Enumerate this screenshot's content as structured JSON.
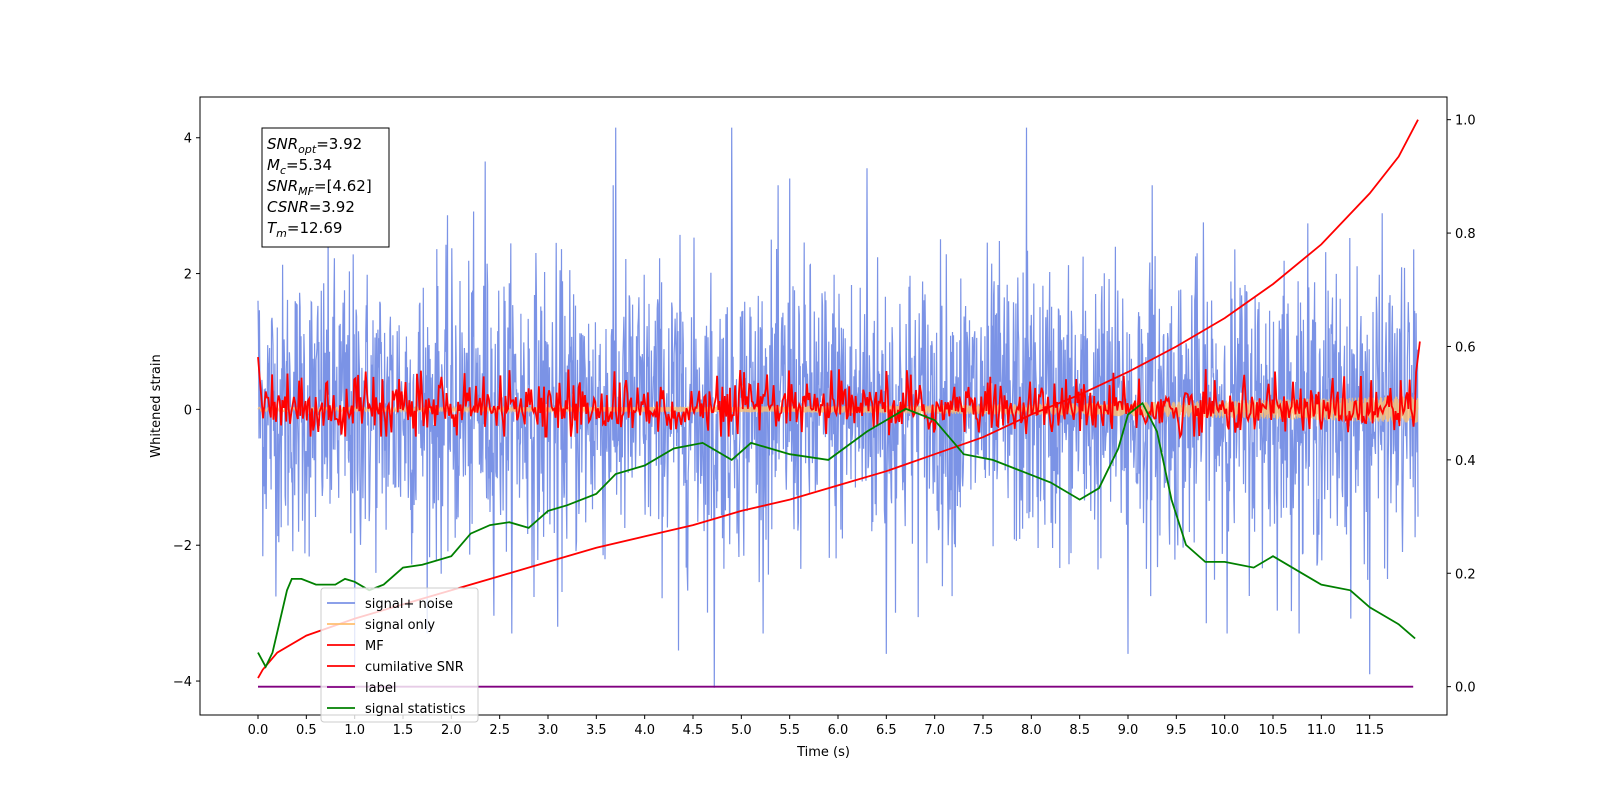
{
  "chart_data": {
    "type": "line",
    "xlabel": "Time (s)",
    "ylabel": "Whitened strain",
    "xlim": [
      -0.6,
      12.3
    ],
    "ylim": [
      -4.5,
      4.6
    ],
    "y2lim": [
      -0.05,
      1.04
    ],
    "grid": false,
    "legend_position": "lower-left",
    "x_ticks": [
      "0.0",
      "0.5",
      "1.0",
      "1.5",
      "2.0",
      "2.5",
      "3.0",
      "3.5",
      "4.0",
      "4.5",
      "5.0",
      "5.5",
      "6.0",
      "6.5",
      "7.0",
      "7.5",
      "8.0",
      "8.5",
      "9.0",
      "9.5",
      "10.0",
      "10.5",
      "11.0",
      "11.5"
    ],
    "y_ticks": [
      "4",
      "2",
      "0",
      "−2",
      "−4"
    ],
    "y2_ticks": [
      "1.0",
      "0.8",
      "0.6",
      "0.4",
      "0.2",
      "0.0"
    ],
    "annotation": {
      "lines": [
        {
          "label": "SNR",
          "sub": "opt",
          "value": "=3.92"
        },
        {
          "label": "M",
          "sub": "c",
          "value": "=5.34"
        },
        {
          "label": "SNR",
          "sub": "MF",
          "value": "=[4.62]"
        },
        {
          "label": "CSNR",
          "sub": "",
          "value": "=3.92"
        },
        {
          "label": "T",
          "sub": "m",
          "value": "=12.69"
        }
      ]
    },
    "legend": [
      {
        "name": "signal+ noise",
        "color": "#7b93e6"
      },
      {
        "name": "signal only",
        "color": "#ffbf70"
      },
      {
        "name": "MF",
        "color": "#ff0000"
      },
      {
        "name": "cumilative SNR",
        "color": "#ff0000"
      },
      {
        "name": "label",
        "color": "#800080"
      },
      {
        "name": "signal statistics",
        "color": "#008000"
      }
    ],
    "series": [
      {
        "name": "signal+ noise",
        "axis": "left",
        "color": "#7b93e6",
        "description": "dense noisy whitened strain, approx. range -4.1 to 4.2",
        "x_range": [
          0.0,
          12.0
        ],
        "noise_sigma": 1.05,
        "peaks": [
          [
            0.0,
            1.6
          ],
          [
            2.35,
            3.65
          ],
          [
            3.7,
            4.15
          ],
          [
            4.9,
            4.15
          ],
          [
            7.95,
            4.15
          ],
          [
            5.5,
            3.4
          ],
          [
            6.3,
            3.55
          ],
          [
            9.25,
            3.3
          ],
          [
            4.72,
            -4.1
          ],
          [
            4.35,
            -3.55
          ],
          [
            6.5,
            -3.6
          ],
          [
            9.0,
            -3.6
          ],
          [
            11.5,
            -3.9
          ],
          [
            1.0,
            -3.8
          ],
          [
            3.1,
            -3.2
          ]
        ]
      },
      {
        "name": "signal only",
        "axis": "left",
        "color": "#ffbf70",
        "description": "small chirp, amplitude growing to about 0.2 near the end",
        "x_range": [
          0.0,
          12.0
        ],
        "amplitude_end": 0.2
      },
      {
        "name": "MF",
        "axis": "left",
        "color": "#ff0000",
        "description": "matched filter output fluctuating around 0",
        "x_range": [
          0.0,
          12.0
        ],
        "points": [
          [
            0.0,
            0.77
          ],
          [
            0.05,
            0.0
          ],
          [
            12.0,
            0.0
          ],
          [
            12.02,
            1.0
          ]
        ],
        "noise_sigma": 0.18
      },
      {
        "name": "cumilative SNR",
        "axis": "right",
        "color": "#ff0000",
        "x": [
          0.0,
          0.05,
          0.2,
          0.5,
          1.0,
          1.5,
          2.0,
          2.5,
          3.0,
          3.5,
          4.0,
          4.5,
          5.0,
          5.5,
          6.0,
          6.5,
          7.0,
          7.5,
          8.0,
          8.5,
          9.0,
          9.5,
          10.0,
          10.5,
          11.0,
          11.5,
          11.8,
          12.0
        ],
        "values": [
          0.015,
          0.03,
          0.06,
          0.09,
          0.12,
          0.145,
          0.17,
          0.195,
          0.22,
          0.245,
          0.265,
          0.285,
          0.31,
          0.33,
          0.355,
          0.38,
          0.41,
          0.44,
          0.48,
          0.515,
          0.555,
          0.6,
          0.65,
          0.71,
          0.78,
          0.87,
          0.935,
          1.0
        ]
      },
      {
        "name": "label",
        "axis": "right",
        "color": "#800080",
        "x": [
          0.0,
          11.95
        ],
        "values": [
          0.0,
          0.0
        ]
      },
      {
        "name": "signal statistics",
        "axis": "right",
        "color": "#008000",
        "x": [
          0.0,
          0.08,
          0.15,
          0.3,
          0.35,
          0.45,
          0.6,
          0.8,
          0.9,
          1.0,
          1.15,
          1.3,
          1.5,
          1.7,
          2.0,
          2.2,
          2.4,
          2.6,
          2.8,
          3.0,
          3.2,
          3.5,
          3.7,
          4.0,
          4.3,
          4.6,
          4.9,
          5.1,
          5.5,
          5.9,
          6.3,
          6.7,
          7.0,
          7.3,
          7.6,
          7.9,
          8.2,
          8.5,
          8.7,
          8.9,
          9.0,
          9.15,
          9.3,
          9.45,
          9.6,
          9.8,
          10.0,
          10.3,
          10.5,
          10.8,
          11.0,
          11.3,
          11.5,
          11.8,
          11.97
        ],
        "values": [
          0.06,
          0.035,
          0.06,
          0.17,
          0.19,
          0.19,
          0.18,
          0.18,
          0.19,
          0.185,
          0.17,
          0.18,
          0.21,
          0.215,
          0.23,
          0.27,
          0.285,
          0.29,
          0.28,
          0.31,
          0.32,
          0.34,
          0.375,
          0.39,
          0.42,
          0.43,
          0.4,
          0.43,
          0.41,
          0.4,
          0.45,
          0.49,
          0.47,
          0.41,
          0.4,
          0.38,
          0.36,
          0.33,
          0.35,
          0.42,
          0.48,
          0.5,
          0.45,
          0.33,
          0.25,
          0.22,
          0.22,
          0.21,
          0.23,
          0.2,
          0.18,
          0.17,
          0.14,
          0.11,
          0.085
        ]
      }
    ]
  }
}
